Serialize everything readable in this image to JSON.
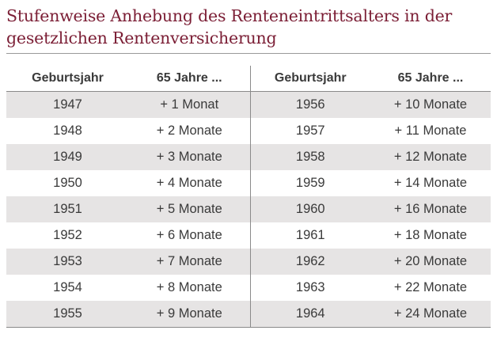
{
  "title": {
    "line1": "Stufenweise Anhebung des Renteneintrittsalters in der",
    "line2": "gesetzlichen Rentenversicherung"
  },
  "colors": {
    "title": "#7b1e35",
    "row_shade": "#e6e4e4",
    "text": "#3a3a3a"
  },
  "table": {
    "headers": [
      "Geburtsjahr",
      "65 Jahre ...",
      "Geburtsjahr",
      "65 Jahre ..."
    ],
    "rows": [
      [
        "1947",
        "+ 1 Monat",
        "1956",
        "+ 10 Monate"
      ],
      [
        "1948",
        "+ 2 Monate",
        "1957",
        "+ 11 Monate"
      ],
      [
        "1949",
        "+ 3 Monate",
        "1958",
        "+ 12 Monate"
      ],
      [
        "1950",
        "+ 4 Monate",
        "1959",
        "+ 14 Monate"
      ],
      [
        "1951",
        "+ 5 Monate",
        "1960",
        "+ 16 Monate"
      ],
      [
        "1952",
        "+ 6 Monate",
        "1961",
        "+ 18 Monate"
      ],
      [
        "1953",
        "+ 7 Monate",
        "1962",
        "+ 20 Monate"
      ],
      [
        "1954",
        "+ 8 Monate",
        "1963",
        "+ 22 Monate"
      ],
      [
        "1955",
        "+ 9 Monate",
        "1964",
        "+ 24 Monate"
      ]
    ]
  }
}
